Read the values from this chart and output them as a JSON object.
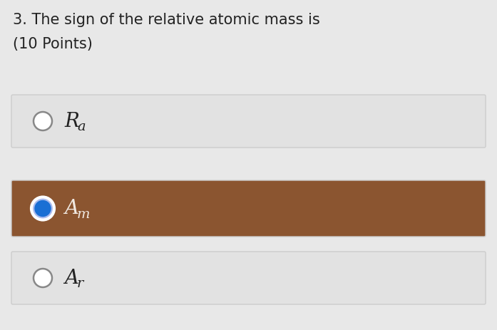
{
  "background_color": "#e8e8e8",
  "title_line1": "3. The sign of the relative atomic mass is",
  "title_line2": "(10 Points)",
  "title_fontsize": 15,
  "title_color": "#222222",
  "options": [
    {
      "label_main": "R",
      "label_sub": "a",
      "selected": false,
      "box_color": "#e2e2e2",
      "text_color": "#222222",
      "radio_outer_color": "#ffffff",
      "radio_border_color": "#888888",
      "radio_inner_color": null
    },
    {
      "label_main": "A",
      "label_sub": "m",
      "selected": true,
      "box_color": "#8B5530",
      "text_color": "#f0e8e0",
      "radio_outer_color": "#5599ee",
      "radio_border_color": "#ffffff",
      "radio_inner_color": "#1a6fd4"
    },
    {
      "label_main": "A",
      "label_sub": "r",
      "selected": false,
      "box_color": "#e2e2e2",
      "text_color": "#222222",
      "radio_outer_color": "#ffffff",
      "radio_border_color": "#888888",
      "radio_inner_color": null
    }
  ],
  "box_border_color": "#cccccc",
  "fig_width": 6.97,
  "fig_height": 4.63,
  "dpi": 100
}
